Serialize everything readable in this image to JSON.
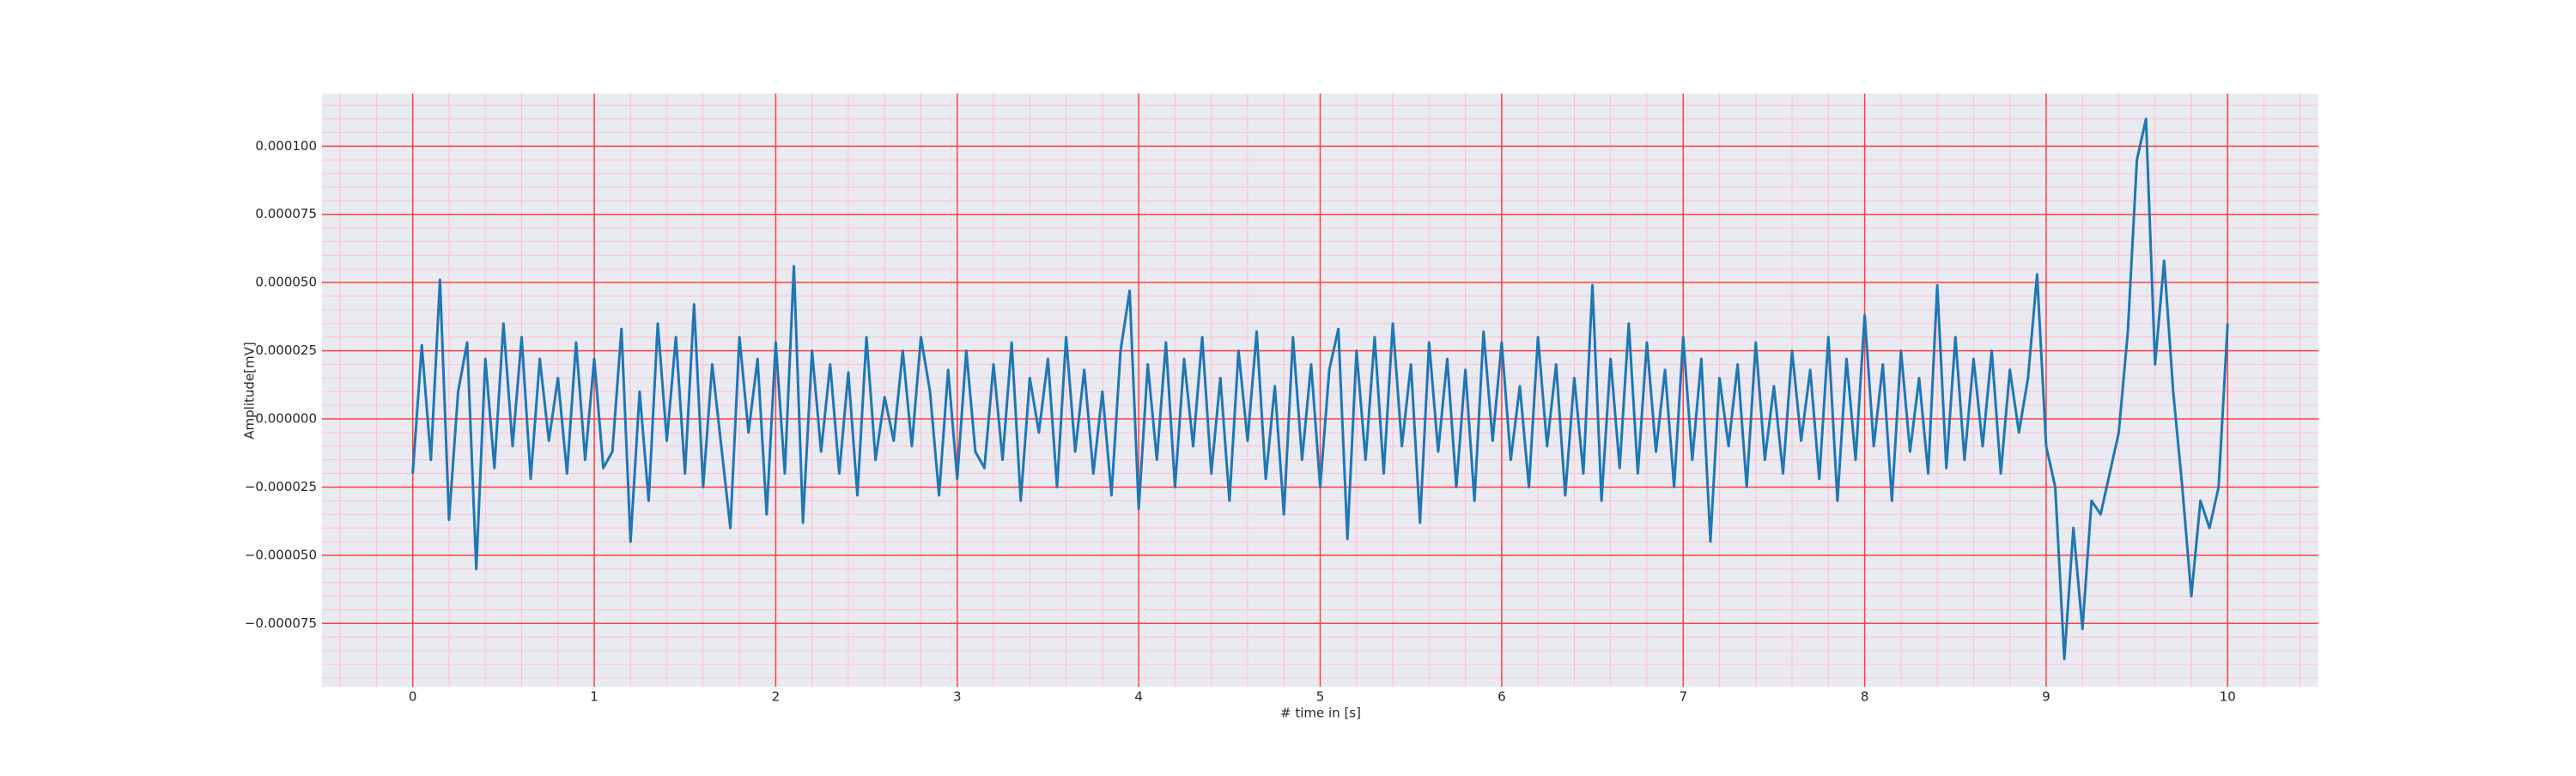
{
  "chart_data": {
    "type": "line",
    "x_label": "# time in [s]",
    "y_label": "Amplitude[mV]",
    "color": "#1f77b4",
    "background": "#eaeaf2",
    "grid": true,
    "grid_color": "#ff4040",
    "minor_grid_color": "#ffc0cc",
    "xlim": [
      -0.5,
      10.5
    ],
    "ylim": [
      -9.82e-05,
      0.0001193
    ],
    "xticks": [
      0,
      1,
      2,
      3,
      4,
      5,
      6,
      7,
      8,
      9,
      10
    ],
    "yticks": [
      {
        "value": -7.5e-05,
        "label": "−0.000075"
      },
      {
        "value": -5e-05,
        "label": "−0.000050"
      },
      {
        "value": -2.5e-05,
        "label": "−0.000025"
      },
      {
        "value": 0,
        "label": "0.000000"
      },
      {
        "value": 2.5e-05,
        "label": "0.000025"
      },
      {
        "value": 5e-05,
        "label": "0.000050"
      },
      {
        "value": 7.5e-05,
        "label": "0.000075"
      },
      {
        "value": 0.0001,
        "label": "0.000100"
      }
    ],
    "x_minor_ticks": [
      -0.4,
      -0.2,
      0.2,
      0.4,
      0.6,
      0.8,
      1.2,
      1.4,
      1.6,
      1.8,
      2.2,
      2.4,
      2.6,
      2.8,
      3.2,
      3.4,
      3.6,
      3.8,
      4.2,
      4.4,
      4.6,
      4.8,
      5.2,
      5.4,
      5.6,
      5.8,
      6.2,
      6.4,
      6.6,
      6.8,
      7.2,
      7.4,
      7.6,
      7.8,
      8.2,
      8.4,
      8.6,
      8.8,
      9.2,
      9.4,
      9.6,
      9.8,
      10.2,
      10.4
    ],
    "y_minor_ticks": [
      -9.5e-05,
      -9e-05,
      -8.5e-05,
      -8e-05,
      -7e-05,
      -6.5e-05,
      -6e-05,
      -5.5e-05,
      -4.5e-05,
      -4e-05,
      -3.5e-05,
      -3e-05,
      -2e-05,
      -1.5e-05,
      -1e-05,
      -5e-06,
      5e-06,
      1e-05,
      1.5e-05,
      2e-05,
      3e-05,
      3.5e-05,
      4e-05,
      4.5e-05,
      5.5e-05,
      6e-05,
      6.5e-05,
      7e-05,
      8e-05,
      8.5e-05,
      9e-05,
      9.5e-05,
      0.000105,
      0.00011,
      0.000115
    ],
    "x": [
      0,
      0.05,
      0.1,
      0.15,
      0.2,
      0.25,
      0.3,
      0.35,
      0.4,
      0.45,
      0.5,
      0.55,
      0.6,
      0.65,
      0.7,
      0.75,
      0.8,
      0.85,
      0.9,
      0.95,
      1,
      1.05,
      1.1,
      1.15,
      1.2,
      1.25,
      1.3,
      1.35,
      1.4,
      1.45,
      1.5,
      1.55,
      1.6,
      1.65,
      1.7,
      1.75,
      1.8,
      1.85,
      1.9,
      1.95,
      2,
      2.05,
      2.1,
      2.15,
      2.2,
      2.25,
      2.3,
      2.35,
      2.4,
      2.45,
      2.5,
      2.55,
      2.6,
      2.65,
      2.7,
      2.75,
      2.8,
      2.85,
      2.9,
      2.95,
      3,
      3.05,
      3.1,
      3.15,
      3.2,
      3.25,
      3.3,
      3.35,
      3.4,
      3.45,
      3.5,
      3.55,
      3.6,
      3.65,
      3.7,
      3.75,
      3.8,
      3.85,
      3.9,
      3.95,
      4,
      4.05,
      4.1,
      4.15,
      4.2,
      4.25,
      4.3,
      4.35,
      4.4,
      4.45,
      4.5,
      4.55,
      4.6,
      4.65,
      4.7,
      4.75,
      4.8,
      4.85,
      4.9,
      4.95,
      5,
      5.05,
      5.1,
      5.15,
      5.2,
      5.25,
      5.3,
      5.35,
      5.4,
      5.45,
      5.5,
      5.55,
      5.6,
      5.65,
      5.7,
      5.75,
      5.8,
      5.85,
      5.9,
      5.95,
      6,
      6.05,
      6.1,
      6.15,
      6.2,
      6.25,
      6.3,
      6.35,
      6.4,
      6.45,
      6.5,
      6.55,
      6.6,
      6.65,
      6.7,
      6.75,
      6.8,
      6.85,
      6.9,
      6.95,
      7,
      7.05,
      7.1,
      7.15,
      7.2,
      7.25,
      7.3,
      7.35,
      7.4,
      7.45,
      7.5,
      7.55,
      7.6,
      7.65,
      7.7,
      7.75,
      7.8,
      7.85,
      7.9,
      7.95,
      8,
      8.05,
      8.1,
      8.15,
      8.2,
      8.25,
      8.3,
      8.35,
      8.4,
      8.45,
      8.5,
      8.55,
      8.6,
      8.65,
      8.7,
      8.75,
      8.8,
      8.85,
      8.9,
      8.95,
      9,
      9.05,
      9.1,
      9.15,
      9.2,
      9.25,
      9.3,
      9.35,
      9.4,
      9.45,
      9.5,
      9.55,
      9.6,
      9.65,
      9.7,
      9.75,
      9.8,
      9.85,
      9.9,
      9.95,
      10
    ],
    "values": [
      -2e-05,
      2.7e-05,
      -1.5e-05,
      5.1e-05,
      -3.7e-05,
      1e-05,
      2.8e-05,
      -5.5e-05,
      2.2e-05,
      -1.8e-05,
      3.5e-05,
      -1e-05,
      3e-05,
      -2.2e-05,
      2.2e-05,
      -8e-06,
      1.5e-05,
      -2e-05,
      2.8e-05,
      -1.5e-05,
      2.2e-05,
      -1.8e-05,
      -1.2e-05,
      3.3e-05,
      -4.5e-05,
      1e-05,
      -3e-05,
      3.5e-05,
      -8e-06,
      3e-05,
      -2e-05,
      4.2e-05,
      -2.5e-05,
      2e-05,
      -1e-05,
      -4e-05,
      3e-05,
      -5e-06,
      2.2e-05,
      -3.5e-05,
      2.8e-05,
      -2e-05,
      5.6e-05,
      -3.8e-05,
      2.5e-05,
      -1.2e-05,
      2e-05,
      -2e-05,
      1.7e-05,
      -2.8e-05,
      3e-05,
      -1.5e-05,
      8e-06,
      -8e-06,
      2.5e-05,
      -1e-05,
      3e-05,
      1e-05,
      -2.8e-05,
      1.8e-05,
      -2.2e-05,
      2.5e-05,
      -1.2e-05,
      -1.8e-05,
      2e-05,
      -1.5e-05,
      2.8e-05,
      -3e-05,
      1.5e-05,
      -5e-06,
      2.2e-05,
      -2.5e-05,
      3e-05,
      -1.2e-05,
      1.8e-05,
      -2e-05,
      1e-05,
      -2.8e-05,
      2.5e-05,
      4.7e-05,
      -3.3e-05,
      2e-05,
      -1.5e-05,
      2.8e-05,
      -2.5e-05,
      2.2e-05,
      -1e-05,
      3e-05,
      -2e-05,
      1.5e-05,
      -3e-05,
      2.5e-05,
      -8e-06,
      3.2e-05,
      -2.2e-05,
      1.2e-05,
      -3.5e-05,
      3e-05,
      -1.5e-05,
      2e-05,
      -2.5e-05,
      1.8e-05,
      3.3e-05,
      -4.4e-05,
      2.5e-05,
      -1.5e-05,
      3e-05,
      -2e-05,
      3.5e-05,
      -1e-05,
      2e-05,
      -3.8e-05,
      2.8e-05,
      -1.2e-05,
      2.2e-05,
      -2.5e-05,
      1.8e-05,
      -3e-05,
      3.2e-05,
      -8e-06,
      2.8e-05,
      -1.5e-05,
      1.2e-05,
      -2.5e-05,
      3e-05,
      -1e-05,
      2e-05,
      -2.8e-05,
      1.5e-05,
      -2e-05,
      4.9e-05,
      -3e-05,
      2.2e-05,
      -1.8e-05,
      3.5e-05,
      -2e-05,
      2.8e-05,
      -1.2e-05,
      1.8e-05,
      -2.5e-05,
      3e-05,
      -1.5e-05,
      2.2e-05,
      -4.5e-05,
      1.5e-05,
      -1e-05,
      2e-05,
      -2.5e-05,
      2.8e-05,
      -1.5e-05,
      1.2e-05,
      -2e-05,
      2.5e-05,
      -8e-06,
      1.8e-05,
      -2.2e-05,
      3e-05,
      -3e-05,
      2.2e-05,
      -1.5e-05,
      3.8e-05,
      -1e-05,
      2e-05,
      -3e-05,
      2.5e-05,
      -1.2e-05,
      1.5e-05,
      -2e-05,
      4.9e-05,
      -1.8e-05,
      3e-05,
      -1.5e-05,
      2.2e-05,
      -1e-05,
      2.5e-05,
      -2e-05,
      1.8e-05,
      -5e-06,
      1.5e-05,
      5.3e-05,
      -1e-05,
      -2.5e-05,
      -8.8e-05,
      -4e-05,
      -7.7e-05,
      -3e-05,
      -3.5e-05,
      -2e-05,
      -5e-06,
      3.2e-05,
      9.5e-05,
      0.00011,
      2e-05,
      5.8e-05,
      1e-05,
      -2.5e-05,
      -6.5e-05,
      -3e-05,
      -4e-05,
      -2.5e-05,
      3.5e-05
    ]
  }
}
